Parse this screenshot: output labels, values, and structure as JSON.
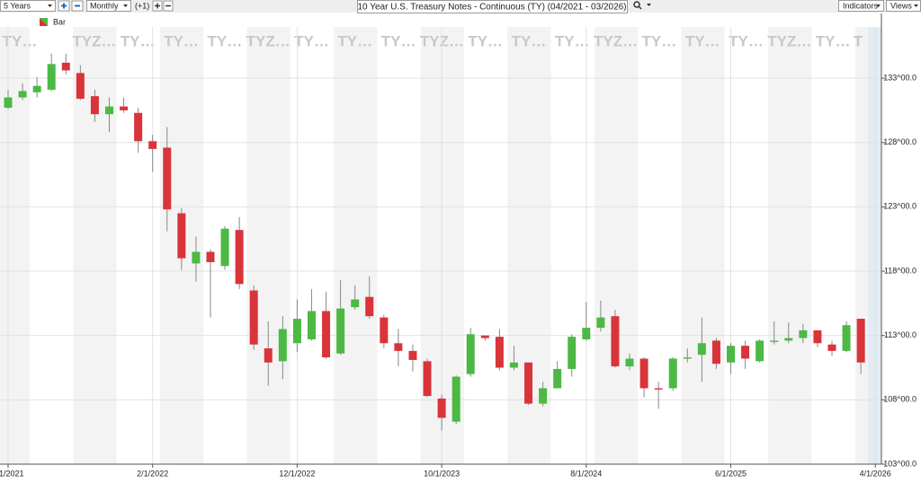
{
  "toolbar": {
    "range": "5 Years",
    "interval": "Monthly",
    "offset": "(+1)",
    "title": "10 Year U.S. Treasury Notes - Continuous (TY) (04/2021 - 03/2026)",
    "indicators": "Indicators",
    "views": "Views"
  },
  "chart_data": {
    "type": "candlestick",
    "categories": [
      "4/1/2021",
      "5/1/2021",
      "6/1/2021",
      "7/1/2021",
      "8/1/2021",
      "9/1/2021",
      "10/1/2021",
      "11/1/2021",
      "12/1/2021",
      "1/1/2022",
      "2/1/2022",
      "3/1/2022",
      "4/1/2022",
      "5/1/2022",
      "6/1/2022",
      "7/1/2022",
      "8/1/2022",
      "9/1/2022",
      "10/1/2022",
      "11/1/2022",
      "12/1/2022",
      "1/1/2023",
      "2/1/2023",
      "3/1/2023",
      "4/1/2023",
      "5/1/2023",
      "6/1/2023",
      "7/1/2023",
      "8/1/2023",
      "9/1/2023",
      "10/1/2023",
      "11/1/2023",
      "12/1/2023",
      "1/1/2024",
      "2/1/2024",
      "3/1/2024",
      "4/1/2024",
      "5/1/2024",
      "6/1/2024",
      "7/1/2024",
      "8/1/2024",
      "9/1/2024",
      "10/1/2024",
      "11/1/2024",
      "12/1/2024",
      "1/1/2025",
      "2/1/2025",
      "3/1/2025",
      "4/1/2025",
      "5/1/2025",
      "6/1/2025",
      "7/1/2025",
      "8/1/2025",
      "9/1/2025",
      "10/1/2025",
      "11/1/2025",
      "12/1/2025",
      "1/1/2026",
      "2/1/2026",
      "3/1/2026"
    ],
    "series": [
      {
        "name": "Bar",
        "up_color": "#4cb944",
        "down_color": "#d9343a",
        "open": [
          130.7,
          131.5,
          131.9,
          132.1,
          134.2,
          133.4,
          131.6,
          130.2,
          130.8,
          130.3,
          128.1,
          127.6,
          122.5,
          118.6,
          119.5,
          118.4,
          121.2,
          116.5,
          112.0,
          111.0,
          112.4,
          112.7,
          114.9,
          111.6,
          115.2,
          116.0,
          114.4,
          112.4,
          111.8,
          111.0,
          108.1,
          106.3,
          110.0,
          113.0,
          112.9,
          110.5,
          110.9,
          107.7,
          108.9,
          110.4,
          112.7,
          113.6,
          114.5,
          110.6,
          111.2,
          108.9,
          108.9,
          111.2,
          111.5,
          112.6,
          110.9,
          112.2,
          111.0,
          112.5,
          112.6,
          112.8,
          113.4,
          112.3,
          111.8,
          114.3
        ],
        "high": [
          132.1,
          132.6,
          133.1,
          134.9,
          134.9,
          134.0,
          132.1,
          131.5,
          131.5,
          130.7,
          128.6,
          129.2,
          122.9,
          120.7,
          119.7,
          121.5,
          122.2,
          116.9,
          114.1,
          114.5,
          115.8,
          116.6,
          116.4,
          117.3,
          116.9,
          117.6,
          114.6,
          113.5,
          112.3,
          111.2,
          108.4,
          109.9,
          113.6,
          113.0,
          113.5,
          112.2,
          110.9,
          109.4,
          111.0,
          113.1,
          115.6,
          115.7,
          115.0,
          111.6,
          111.3,
          109.4,
          111.3,
          112.0,
          114.4,
          112.8,
          112.4,
          112.6,
          112.7,
          114.1,
          114.0,
          113.9,
          113.4,
          112.6,
          114.1,
          114.3
        ],
        "low": [
          130.6,
          131.3,
          131.5,
          132.0,
          133.3,
          131.3,
          129.6,
          128.8,
          130.3,
          127.2,
          125.7,
          121.1,
          118.1,
          117.2,
          114.4,
          118.1,
          116.6,
          111.9,
          109.1,
          109.6,
          111.7,
          112.6,
          111.2,
          111.5,
          115.0,
          114.3,
          112.0,
          110.6,
          110.2,
          108.2,
          105.6,
          106.1,
          109.8,
          112.6,
          110.3,
          110.3,
          107.6,
          107.5,
          108.9,
          109.8,
          112.6,
          113.3,
          110.5,
          110.3,
          108.2,
          107.3,
          108.7,
          110.9,
          109.4,
          110.4,
          110.0,
          110.4,
          110.9,
          112.3,
          112.4,
          112.4,
          112.1,
          111.4,
          111.7,
          110.0
        ],
        "close": [
          131.5,
          132.0,
          132.4,
          134.1,
          133.6,
          131.4,
          130.2,
          130.8,
          130.5,
          128.1,
          127.5,
          122.8,
          119.0,
          119.5,
          118.7,
          121.3,
          117.0,
          112.3,
          110.9,
          113.5,
          114.3,
          114.9,
          111.3,
          115.1,
          115.8,
          114.5,
          112.4,
          111.8,
          111.1,
          108.3,
          106.6,
          109.8,
          113.1,
          112.8,
          110.5,
          110.9,
          107.7,
          108.9,
          110.4,
          112.9,
          113.6,
          114.4,
          110.6,
          111.2,
          108.9,
          108.8,
          111.2,
          111.3,
          112.4,
          110.8,
          112.2,
          111.2,
          112.6,
          112.6,
          112.8,
          113.4,
          112.4,
          111.8,
          113.8,
          110.9
        ]
      }
    ],
    "ylim": [
      103,
      138
    ],
    "yticks": [
      {
        "value": 103,
        "label": "103^00.0"
      },
      {
        "value": 108,
        "label": "108^00.0"
      },
      {
        "value": 113,
        "label": "113^00.0"
      },
      {
        "value": 118,
        "label": "118^00.0"
      },
      {
        "value": 123,
        "label": "123^00.0"
      },
      {
        "value": 128,
        "label": "128^00.0"
      },
      {
        "value": 133,
        "label": "133^00.0"
      }
    ],
    "xticks": [
      "4/1/2021",
      "2/1/2022",
      "12/1/2022",
      "10/1/2023",
      "8/1/2024",
      "6/1/2025",
      "4/1/2026"
    ],
    "contract_labels": [
      "TY…",
      "TYZ…",
      "TY…",
      "TY…",
      "TY…",
      "TYZ…",
      "TY…",
      "TY…",
      "TY…",
      "TYZ…",
      "TY…",
      "TY…",
      "TY…",
      "TYZ…",
      "TY…",
      "TY…",
      "TY…",
      "TYZ…",
      "TY…",
      "T"
    ],
    "grid": true
  }
}
